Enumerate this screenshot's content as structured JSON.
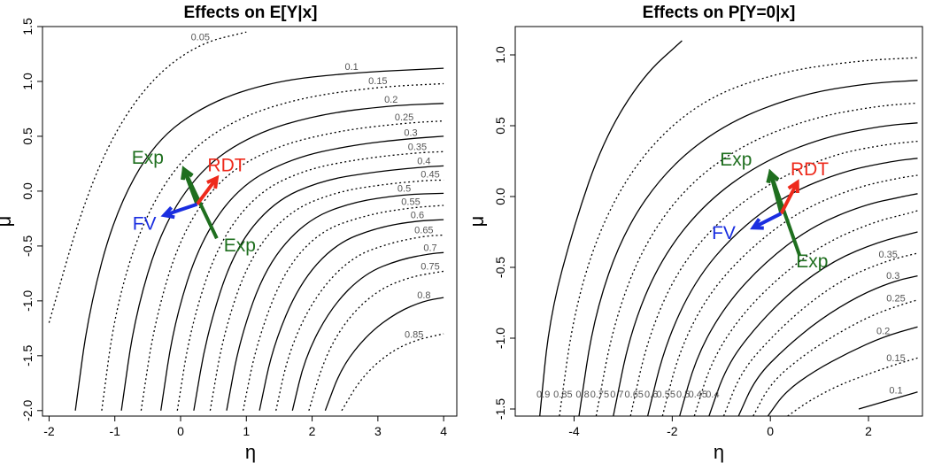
{
  "colors": {
    "exp": "#1f6f1f",
    "rdt": "#ee2a1c",
    "fv": "#1a2ee0",
    "contour": "#000000"
  },
  "chart_data": [
    {
      "type": "contour",
      "title": "Effects on E[Y|x]",
      "xlabel": "η",
      "ylabel": "μ",
      "xlim": [
        -2.1,
        4.2
      ],
      "ylim": [
        -2.05,
        1.5
      ],
      "xticks": [
        "-2",
        "-1",
        "0",
        "1",
        "2",
        "3",
        "4"
      ],
      "yticks": [
        "-2.0",
        "-1.5",
        "-1.0",
        "-0.5",
        "0.0",
        "0.5",
        "1.0",
        "1.5"
      ],
      "contour_levels": [
        "0.05",
        "0.1",
        "0.15",
        "0.2",
        "0.25",
        "0.3",
        "0.35",
        "0.4",
        "0.45",
        "0.5",
        "0.55",
        "0.6",
        "0.65",
        "0.7",
        "0.75",
        "0.8",
        "0.85"
      ],
      "contour_points": [
        {
          "level": 0.05,
          "x": [
            -2.0,
            -1.5,
            -1.0,
            -0.4,
            0.3,
            1.0
          ],
          "y": [
            -1.2,
            -0.15,
            0.55,
            1.05,
            1.35,
            1.45
          ]
        },
        {
          "level": 0.1,
          "x": [
            -1.6,
            -1.4,
            -1.0,
            -0.4,
            0.4,
            1.4,
            2.6,
            4.0
          ],
          "y": [
            -2.0,
            -1.1,
            -0.2,
            0.45,
            0.8,
            1.0,
            1.08,
            1.12
          ]
        },
        {
          "level": 0.15,
          "x": [
            -1.2,
            -1.0,
            -0.6,
            0.0,
            0.8,
            1.8,
            3.0,
            4.0
          ],
          "y": [
            -2.0,
            -1.1,
            -0.3,
            0.3,
            0.65,
            0.85,
            0.95,
            0.98
          ]
        },
        {
          "level": 0.2,
          "x": [
            -0.9,
            -0.7,
            -0.3,
            0.3,
            1.1,
            2.1,
            3.2,
            4.0
          ],
          "y": [
            -2.0,
            -1.15,
            -0.35,
            0.2,
            0.52,
            0.7,
            0.78,
            0.8
          ]
        },
        {
          "level": 0.25,
          "x": [
            -0.6,
            -0.4,
            0.0,
            0.6,
            1.4,
            2.4,
            3.4,
            4.0
          ],
          "y": [
            -2.0,
            -1.2,
            -0.4,
            0.12,
            0.4,
            0.55,
            0.62,
            0.64
          ]
        },
        {
          "level": 0.3,
          "x": [
            -0.3,
            -0.1,
            0.3,
            0.9,
            1.7,
            2.6,
            3.5,
            4.0
          ],
          "y": [
            -2.0,
            -1.2,
            -0.45,
            0.05,
            0.3,
            0.42,
            0.48,
            0.5
          ]
        },
        {
          "level": 0.35,
          "x": [
            -0.05,
            0.15,
            0.55,
            1.15,
            1.9,
            2.8,
            3.6,
            4.0
          ],
          "y": [
            -2.0,
            -1.25,
            -0.5,
            -0.02,
            0.2,
            0.3,
            0.35,
            0.36
          ]
        },
        {
          "level": 0.4,
          "x": [
            0.2,
            0.4,
            0.8,
            1.4,
            2.15,
            3.0,
            3.7,
            4.0
          ],
          "y": [
            -2.0,
            -1.3,
            -0.55,
            -0.1,
            0.1,
            0.18,
            0.22,
            0.23
          ]
        },
        {
          "level": 0.45,
          "x": [
            0.45,
            0.65,
            1.05,
            1.65,
            2.4,
            3.2,
            3.8,
            4.0
          ],
          "y": [
            -2.0,
            -1.3,
            -0.6,
            -0.18,
            0.0,
            0.07,
            0.1,
            0.1
          ]
        },
        {
          "level": 0.5,
          "x": [
            0.7,
            0.9,
            1.3,
            1.9,
            2.6,
            3.4,
            4.0
          ],
          "y": [
            -2.0,
            -1.35,
            -0.68,
            -0.27,
            -0.1,
            -0.03,
            -0.02
          ]
        },
        {
          "level": 0.55,
          "x": [
            0.95,
            1.15,
            1.55,
            2.1,
            2.8,
            3.5,
            4.0
          ],
          "y": [
            -2.0,
            -1.4,
            -0.75,
            -0.37,
            -0.22,
            -0.15,
            -0.13
          ]
        },
        {
          "level": 0.6,
          "x": [
            1.2,
            1.4,
            1.8,
            2.35,
            3.0,
            3.6,
            4.0
          ],
          "y": [
            -2.0,
            -1.42,
            -0.85,
            -0.48,
            -0.33,
            -0.27,
            -0.26
          ]
        },
        {
          "level": 0.65,
          "x": [
            1.45,
            1.65,
            2.05,
            2.6,
            3.2,
            3.7,
            4.0
          ],
          "y": [
            -2.0,
            -1.45,
            -0.95,
            -0.6,
            -0.47,
            -0.41,
            -0.4
          ]
        },
        {
          "level": 0.7,
          "x": [
            1.7,
            1.9,
            2.3,
            2.8,
            3.35,
            3.8,
            4.0
          ],
          "y": [
            -2.0,
            -1.5,
            -1.05,
            -0.75,
            -0.62,
            -0.57,
            -0.56
          ]
        },
        {
          "level": 0.75,
          "x": [
            1.95,
            2.2,
            2.55,
            3.0,
            3.5,
            3.9,
            4.0
          ],
          "y": [
            -2.0,
            -1.5,
            -1.15,
            -0.9,
            -0.78,
            -0.74,
            -0.73
          ]
        },
        {
          "level": 0.8,
          "x": [
            2.2,
            2.45,
            2.85,
            3.3,
            3.7,
            4.0
          ],
          "y": [
            -2.0,
            -1.6,
            -1.3,
            -1.1,
            -1.0,
            -0.97
          ]
        },
        {
          "level": 0.85,
          "x": [
            2.45,
            2.75,
            3.15,
            3.55,
            4.0
          ],
          "y": [
            -2.0,
            -1.7,
            -1.48,
            -1.36,
            -1.3
          ]
        }
      ],
      "arrows": [
        {
          "label": "Exp",
          "from": [
            0.55,
            -0.43
          ],
          "to": [
            0.05,
            0.2
          ]
        },
        {
          "label": "Exp",
          "from": [
            0.25,
            -0.12
          ],
          "to": [
            0.05,
            0.2
          ]
        },
        {
          "label": "RDT",
          "from": [
            0.25,
            -0.12
          ],
          "to": [
            0.55,
            0.12
          ]
        },
        {
          "label": "FV",
          "from": [
            0.25,
            -0.12
          ],
          "to": [
            -0.25,
            -0.22
          ]
        }
      ],
      "arrow_labels": [
        {
          "text": "Exp",
          "x": -0.5,
          "y": 0.25,
          "color": "exp"
        },
        {
          "text": "RDT",
          "x": 0.7,
          "y": 0.18,
          "color": "rdt"
        },
        {
          "text": "FV",
          "x": -0.55,
          "y": -0.35,
          "color": "fv"
        },
        {
          "text": "Exp",
          "x": 0.9,
          "y": -0.55,
          "color": "exp"
        }
      ]
    },
    {
      "type": "contour",
      "title": "Effects on P[Y=0|x]",
      "xlabel": "η",
      "ylabel": "μ",
      "xlim": [
        -5.2,
        3.1
      ],
      "ylim": [
        -1.55,
        1.2
      ],
      "xticks": [
        "-4",
        "-2",
        "0",
        "2"
      ],
      "yticks": [
        "-1.5",
        "-1.0",
        "-0.5",
        "0.0",
        "0.5",
        "1.0"
      ],
      "contour_levels": [
        "0.9",
        "0.85",
        "0.8",
        "0.75",
        "0.7",
        "0.65",
        "0.6",
        "0.55",
        "0.5",
        "0.45",
        "0.4",
        "0.35",
        "0.3",
        "0.25",
        "0.2",
        "0.15",
        "0.1"
      ],
      "contour_points": [
        {
          "level": 0.9,
          "x": [
            -4.7,
            -4.5,
            -4.0,
            -3.4,
            -2.6,
            -1.8
          ],
          "y": [
            -1.55,
            -0.85,
            -0.2,
            0.4,
            0.85,
            1.1
          ]
        },
        {
          "level": 0.85,
          "x": [
            -4.3,
            -4.0,
            -3.4,
            -2.5,
            -1.3,
            0.2,
            1.8,
            3.0
          ],
          "y": [
            -1.55,
            -0.8,
            -0.15,
            0.35,
            0.7,
            0.88,
            0.96,
            0.98
          ]
        },
        {
          "level": 0.8,
          "x": [
            -3.9,
            -3.6,
            -3.0,
            -2.1,
            -0.9,
            0.6,
            2.0,
            3.0
          ],
          "y": [
            -1.55,
            -0.85,
            -0.25,
            0.2,
            0.52,
            0.72,
            0.8,
            0.82
          ]
        },
        {
          "level": 0.75,
          "x": [
            -3.55,
            -3.2,
            -2.6,
            -1.7,
            -0.5,
            0.9,
            2.2,
            3.0
          ],
          "y": [
            -1.55,
            -0.9,
            -0.35,
            0.08,
            0.38,
            0.56,
            0.64,
            0.66
          ]
        },
        {
          "level": 0.7,
          "x": [
            -3.2,
            -2.85,
            -2.25,
            -1.35,
            -0.2,
            1.1,
            2.3,
            3.0
          ],
          "y": [
            -1.55,
            -0.95,
            -0.45,
            -0.05,
            0.24,
            0.42,
            0.5,
            0.52
          ]
        },
        {
          "level": 0.65,
          "x": [
            -2.85,
            -2.5,
            -1.9,
            -1.0,
            0.1,
            1.3,
            2.4,
            3.0
          ],
          "y": [
            -1.55,
            -1.0,
            -0.52,
            -0.15,
            0.12,
            0.3,
            0.37,
            0.39
          ]
        },
        {
          "level": 0.6,
          "x": [
            -2.5,
            -2.15,
            -1.55,
            -0.7,
            0.35,
            1.5,
            2.5,
            3.0
          ],
          "y": [
            -1.55,
            -1.05,
            -0.6,
            -0.25,
            0.02,
            0.18,
            0.25,
            0.27
          ]
        },
        {
          "level": 0.55,
          "x": [
            -2.2,
            -1.85,
            -1.25,
            -0.4,
            0.6,
            1.7,
            2.6,
            3.0
          ],
          "y": [
            -1.55,
            -1.08,
            -0.68,
            -0.36,
            -0.1,
            0.06,
            0.13,
            0.15
          ]
        },
        {
          "level": 0.5,
          "x": [
            -1.85,
            -1.5,
            -0.9,
            -0.1,
            0.85,
            1.9,
            2.7,
            3.0
          ],
          "y": [
            -1.55,
            -1.12,
            -0.76,
            -0.46,
            -0.21,
            -0.06,
            0.0,
            0.02
          ]
        },
        {
          "level": 0.45,
          "x": [
            -1.55,
            -1.2,
            -0.6,
            0.2,
            1.1,
            2.1,
            2.8,
            3.0
          ],
          "y": [
            -1.55,
            -1.16,
            -0.84,
            -0.56,
            -0.33,
            -0.18,
            -0.12,
            -0.1
          ]
        },
        {
          "level": 0.4,
          "x": [
            -1.25,
            -0.9,
            -0.3,
            0.45,
            1.3,
            2.2,
            3.0
          ],
          "y": [
            -1.55,
            -1.2,
            -0.92,
            -0.66,
            -0.45,
            -0.32,
            -0.25
          ]
        },
        {
          "level": 0.35,
          "x": [
            -0.95,
            -0.6,
            0.0,
            0.75,
            1.55,
            2.4,
            3.0
          ],
          "y": [
            -1.55,
            -1.24,
            -1.0,
            -0.76,
            -0.57,
            -0.45,
            -0.4
          ]
        },
        {
          "level": 0.3,
          "x": [
            -0.65,
            -0.3,
            0.3,
            1.0,
            1.8,
            2.5,
            3.0
          ],
          "y": [
            -1.55,
            -1.28,
            -1.07,
            -0.87,
            -0.7,
            -0.6,
            -0.56
          ]
        },
        {
          "level": 0.25,
          "x": [
            -0.35,
            0.0,
            0.6,
            1.3,
            2.05,
            2.7,
            3.0
          ],
          "y": [
            -1.55,
            -1.32,
            -1.14,
            -0.98,
            -0.84,
            -0.76,
            -0.73
          ]
        },
        {
          "level": 0.2,
          "x": [
            -0.05,
            0.3,
            0.9,
            1.6,
            2.3,
            3.0
          ],
          "y": [
            -1.55,
            -1.38,
            -1.23,
            -1.1,
            -0.99,
            -0.92
          ]
        },
        {
          "level": 0.15,
          "x": [
            0.35,
            0.8,
            1.4,
            2.1,
            2.6,
            3.0
          ],
          "y": [
            -1.55,
            -1.44,
            -1.33,
            -1.24,
            -1.18,
            -1.14
          ]
        },
        {
          "level": 0.1,
          "x": [
            1.8,
            2.3,
            2.7,
            3.0
          ],
          "y": [
            -1.5,
            -1.45,
            -1.41,
            -1.38
          ]
        }
      ],
      "arrows": [
        {
          "label": "Exp",
          "from": [
            0.6,
            -0.42
          ],
          "to": [
            0.0,
            0.17
          ]
        },
        {
          "label": "Exp",
          "from": [
            0.22,
            -0.12
          ],
          "to": [
            0.0,
            0.17
          ]
        },
        {
          "label": "RDT",
          "from": [
            0.22,
            -0.12
          ],
          "to": [
            0.55,
            0.1
          ]
        },
        {
          "label": "FV",
          "from": [
            0.22,
            -0.12
          ],
          "to": [
            -0.35,
            -0.22
          ]
        }
      ],
      "arrow_labels": [
        {
          "text": "Exp",
          "x": -0.7,
          "y": 0.22,
          "color": "exp"
        },
        {
          "text": "RDT",
          "x": 0.8,
          "y": 0.15,
          "color": "rdt"
        },
        {
          "text": "FV",
          "x": -0.95,
          "y": -0.3,
          "color": "fv"
        },
        {
          "text": "Exp",
          "x": 0.85,
          "y": -0.5,
          "color": "exp"
        }
      ]
    }
  ]
}
